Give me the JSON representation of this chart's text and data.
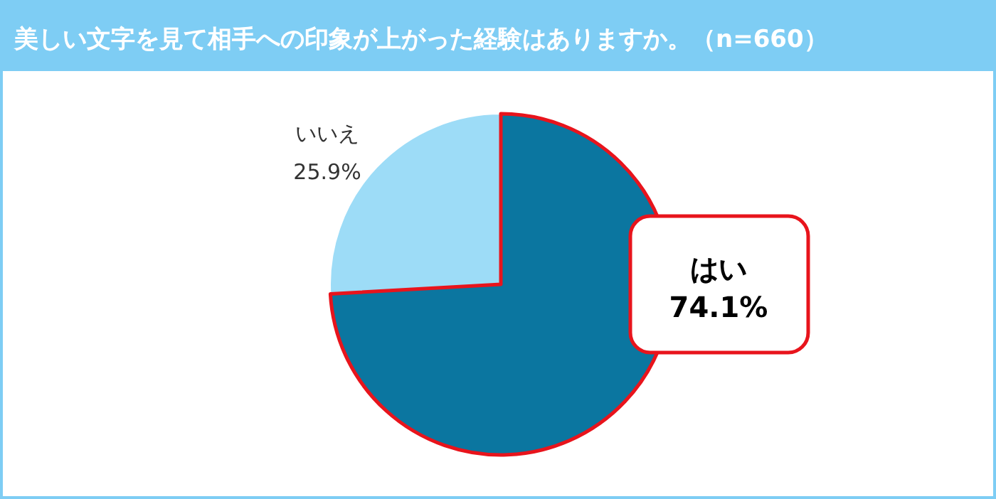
{
  "chart_data": {
    "type": "pie",
    "title": "美しい文字を見て相手への印象が上がった経験はありますか。（n=660）",
    "categories": [
      "はい",
      "いいえ"
    ],
    "values": [
      74.1,
      25.9
    ],
    "value_labels": [
      "74.1%",
      "25.9%"
    ],
    "colors": [
      "#0b76a0",
      "#9ddcf7"
    ]
  }
}
